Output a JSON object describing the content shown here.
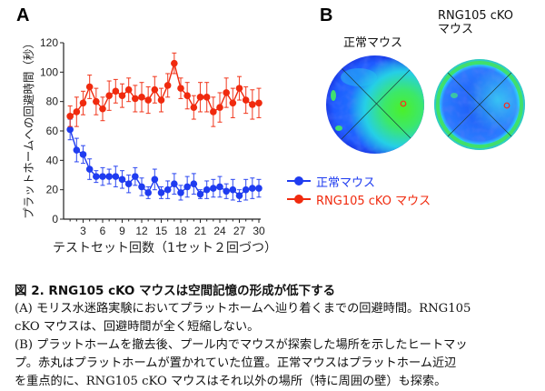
{
  "panel_a": {
    "letter": "A"
  },
  "panel_b": {
    "letter": "B",
    "heatmaps": [
      {
        "title_lines": [
          "正常マウス"
        ],
        "marker": "platform-position",
        "dominant_region": "platform-quadrant"
      },
      {
        "title_lines": [
          "RNG105 cKO",
          "マウス"
        ],
        "marker": "platform-position",
        "dominant_region": "perimeter-wall"
      }
    ],
    "colors": {
      "low": "#1a3cff",
      "mid": "#22d4ff",
      "high": "#33e84a",
      "platform_marker": "#ff2a1a"
    }
  },
  "legend": [
    {
      "label": "正常マウス",
      "color": "#1f3cf0"
    },
    {
      "label": "RNG105 cKO マウス",
      "color": "#f02a0e"
    }
  ],
  "caption": {
    "title": "図 2. RNG105 cKO マウスは空間記憶の形成が低下する",
    "lines": [
      "(A) モリス水迷路実験においてプラットホームへ辿り着くまでの回避時間。RNG105",
      "cKO マウスは、回避時間が全く短縮しない。",
      "(B) プラットホームを撤去後、プール内でマウスが探索した場所を示したヒートマップ。赤丸はプラットホームが置かれていた位置。正常マウスはプラットホーム近辺",
      "を重点的に、RNG105 cKO マウスはそれ以外の場所（特に周囲の壁）も探索。"
    ],
    "wrapped_lines": [
      "(A) モリス水迷路実験においてプラットホームへ辿り着くまでの回避時間。RNG105",
      "cKO マウスは、回避時間が全く短縮しない。",
      "(B) プラットホームを撤去後、プール内でマウスが探索した場所を示したヒートマッ",
      "プ。赤丸はプラットホームが置かれていた位置。正常マウスはプラットホーム近辺",
      "を重点的に、RNG105 cKO マウスはそれ以外の場所（特に周囲の壁）も探索。"
    ]
  },
  "chart_data": {
    "type": "line",
    "title": "",
    "xlabel": "テストセット回数（1セット２回づつ）",
    "ylabel": "プラットホームへの回避時間（秒）",
    "xlim": [
      0,
      30
    ],
    "ylim": [
      0,
      120
    ],
    "xticks": [
      3,
      6,
      9,
      12,
      15,
      18,
      21,
      24,
      27,
      30
    ],
    "yticks": [
      0,
      20,
      40,
      60,
      80,
      100,
      120
    ],
    "grid": false,
    "legend_position": "bottom-right",
    "x": [
      1,
      2,
      3,
      4,
      5,
      6,
      7,
      8,
      9,
      10,
      11,
      12,
      13,
      14,
      15,
      16,
      17,
      18,
      19,
      20,
      21,
      22,
      23,
      24,
      25,
      26,
      27,
      28,
      29,
      30
    ],
    "series": [
      {
        "name": "正常マウス",
        "color": "#1f3cf0",
        "values": [
          61,
          47,
          44,
          34,
          29,
          29,
          29,
          29,
          27,
          24,
          29,
          22,
          18,
          27,
          18,
          20,
          24,
          18,
          22,
          24,
          17,
          20,
          21,
          22,
          19,
          20,
          16,
          20,
          21,
          21
        ],
        "errors": [
          7,
          8,
          6,
          7,
          4,
          6,
          5,
          7,
          6,
          6,
          6,
          6,
          4,
          7,
          4,
          6,
          7,
          5,
          7,
          7,
          3,
          6,
          6,
          7,
          5,
          7,
          4,
          7,
          7,
          6
        ]
      },
      {
        "name": "RNG105 cKO マウス",
        "color": "#f02a0e",
        "values": [
          70,
          73,
          79,
          90,
          80,
          75,
          84,
          87,
          84,
          88,
          82,
          83,
          81,
          88,
          81,
          91,
          106,
          89,
          84,
          76,
          83,
          83,
          73,
          76,
          86,
          79,
          89,
          81,
          78,
          79
        ],
        "errors": [
          7,
          10,
          8,
          8,
          9,
          8,
          10,
          8,
          8,
          8,
          9,
          10,
          9,
          9,
          8,
          8,
          7,
          7,
          9,
          8,
          10,
          10,
          10,
          10,
          10,
          10,
          8,
          9,
          10,
          10
        ]
      }
    ]
  }
}
